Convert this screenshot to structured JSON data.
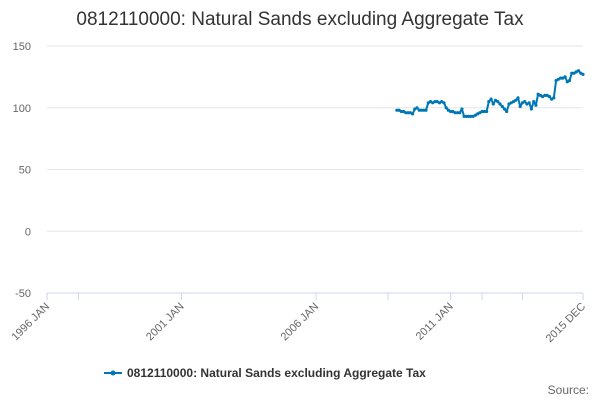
{
  "chart_data": {
    "type": "line",
    "title": "0812110000: Natural Sands excluding Aggregate Tax",
    "xlabel": "",
    "ylabel": "",
    "ylim": [
      -50,
      150
    ],
    "yticks": [
      "150",
      "100",
      "50",
      "0",
      "-50"
    ],
    "xlim": [
      "1996-01",
      "2015-12"
    ],
    "xtick_labels": [
      {
        "date": "1996-01",
        "label": "1996 JAN"
      },
      {
        "date": "2001-01",
        "label": "2001 JAN"
      },
      {
        "date": "2006-01",
        "label": "2006 JAN"
      },
      {
        "date": "2011-01",
        "label": "2011 JAN"
      },
      {
        "date": "2015-12",
        "label": "2015 DEC"
      }
    ],
    "xtick_minor": [
      "1997-03",
      "2008-09",
      "2012-03",
      "2013-09"
    ],
    "grid": true,
    "legend_position": "bottom",
    "series": [
      {
        "name": "0812110000: Natural Sands excluding Aggregate Tax",
        "color": "#0077b5",
        "points": [
          [
            "2009-01",
            98
          ],
          [
            "2009-02",
            98
          ],
          [
            "2009-03",
            97
          ],
          [
            "2009-04",
            97
          ],
          [
            "2009-05",
            96
          ],
          [
            "2009-06",
            96
          ],
          [
            "2009-07",
            96
          ],
          [
            "2009-08",
            95
          ],
          [
            "2009-09",
            99
          ],
          [
            "2009-10",
            100
          ],
          [
            "2009-11",
            98
          ],
          [
            "2009-12",
            98
          ],
          [
            "2010-01",
            98
          ],
          [
            "2010-02",
            98
          ],
          [
            "2010-03",
            104
          ],
          [
            "2010-04",
            105
          ],
          [
            "2010-05",
            104
          ],
          [
            "2010-06",
            105
          ],
          [
            "2010-07",
            105
          ],
          [
            "2010-08",
            104
          ],
          [
            "2010-09",
            105
          ],
          [
            "2010-10",
            104
          ],
          [
            "2010-11",
            100
          ],
          [
            "2010-12",
            98
          ],
          [
            "2011-01",
            97
          ],
          [
            "2011-02",
            97
          ],
          [
            "2011-03",
            96
          ],
          [
            "2011-04",
            96
          ],
          [
            "2011-05",
            96
          ],
          [
            "2011-06",
            99
          ],
          [
            "2011-07",
            93
          ],
          [
            "2011-08",
            93
          ],
          [
            "2011-09",
            93
          ],
          [
            "2011-10",
            93
          ],
          [
            "2011-11",
            93
          ],
          [
            "2011-12",
            94
          ],
          [
            "2012-01",
            95
          ],
          [
            "2012-02",
            96
          ],
          [
            "2012-03",
            97
          ],
          [
            "2012-04",
            97
          ],
          [
            "2012-05",
            97
          ],
          [
            "2012-06",
            105
          ],
          [
            "2012-07",
            107
          ],
          [
            "2012-08",
            103
          ],
          [
            "2012-09",
            106
          ],
          [
            "2012-10",
            105
          ],
          [
            "2012-11",
            103
          ],
          [
            "2012-12",
            101
          ],
          [
            "2013-01",
            99
          ],
          [
            "2013-02",
            97
          ],
          [
            "2013-03",
            103
          ],
          [
            "2013-04",
            104
          ],
          [
            "2013-05",
            105
          ],
          [
            "2013-06",
            106
          ],
          [
            "2013-07",
            108
          ],
          [
            "2013-08",
            101
          ],
          [
            "2013-09",
            104
          ],
          [
            "2013-10",
            105
          ],
          [
            "2013-11",
            103
          ],
          [
            "2013-12",
            104
          ],
          [
            "2014-01",
            99
          ],
          [
            "2014-02",
            105
          ],
          [
            "2014-03",
            102
          ],
          [
            "2014-04",
            111
          ],
          [
            "2014-05",
            110
          ],
          [
            "2014-06",
            109
          ],
          [
            "2014-07",
            110
          ],
          [
            "2014-08",
            110
          ],
          [
            "2014-09",
            109
          ],
          [
            "2014-10",
            107
          ],
          [
            "2014-11",
            108
          ],
          [
            "2014-12",
            122
          ],
          [
            "2015-01",
            123
          ],
          [
            "2015-02",
            124
          ],
          [
            "2015-03",
            124
          ],
          [
            "2015-04",
            125
          ],
          [
            "2015-05",
            121
          ],
          [
            "2015-06",
            122
          ],
          [
            "2015-07",
            128
          ],
          [
            "2015-08",
            128
          ],
          [
            "2015-09",
            129
          ],
          [
            "2015-10",
            130
          ],
          [
            "2015-11",
            128
          ],
          [
            "2015-12",
            127
          ]
        ]
      }
    ]
  },
  "legend": {
    "label": "0812110000: Natural Sands excluding Aggregate Tax"
  },
  "source": {
    "label": "Source:"
  }
}
